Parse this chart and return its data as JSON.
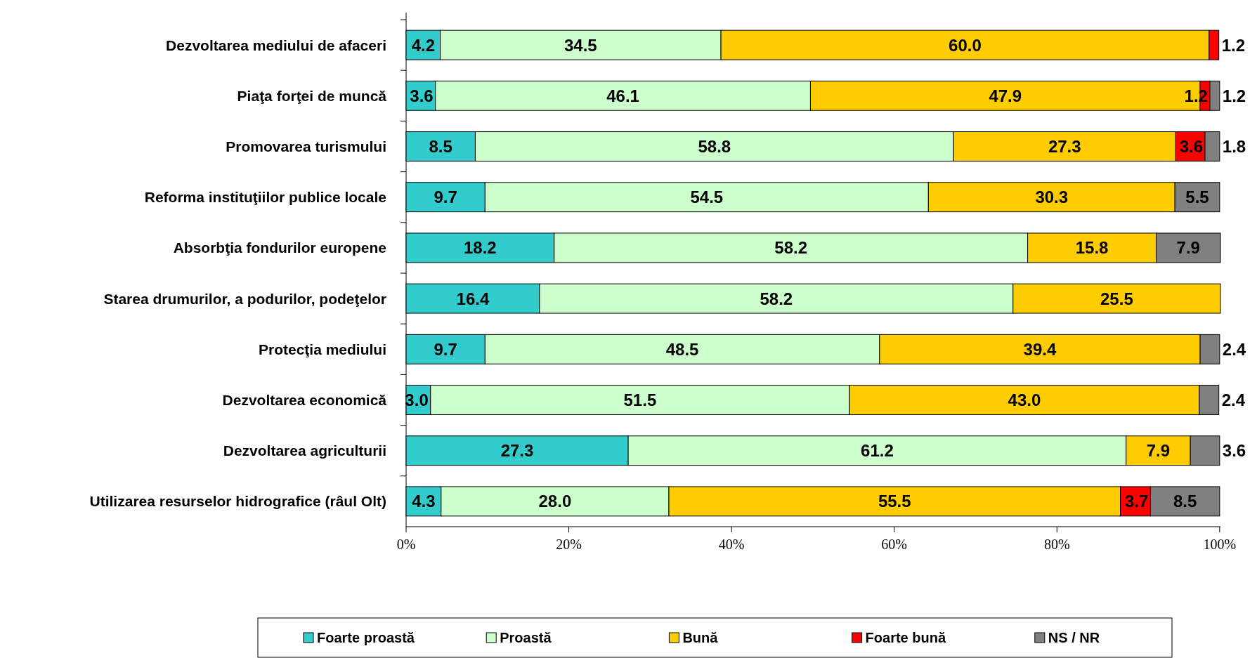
{
  "chart_data": {
    "type": "bar",
    "orientation": "horizontal",
    "stacked": true,
    "categories": [
      "Dezvoltarea mediului de afaceri",
      "Piaţa forţei de muncă",
      "Promovarea turismului",
      "Reforma instituţiilor publice locale",
      "Absorbţia fondurilor europene",
      "Starea drumurilor, a podurilor, podeţelor",
      "Protecţia mediului",
      "Dezvoltarea economică",
      "Dezvoltarea agriculturii",
      "Utilizarea resurselor hidrografice (râul Olt)"
    ],
    "series": [
      {
        "name": "Foarte proastă",
        "color": "#33cccc",
        "values": [
          4.2,
          3.6,
          8.5,
          9.7,
          18.2,
          16.4,
          9.7,
          3.0,
          27.3,
          4.3
        ],
        "value_labels": [
          "4.2",
          "3.6",
          "8.5",
          "9.7",
          "18.2",
          "16.4",
          "9.7",
          "3.0",
          "27.3",
          "4.3"
        ]
      },
      {
        "name": "Proastă",
        "color": "#ccffcc",
        "values": [
          34.5,
          46.1,
          58.8,
          54.5,
          58.2,
          58.2,
          48.5,
          51.5,
          61.2,
          28.0
        ],
        "value_labels": [
          "34.5",
          "46.1",
          "58.8",
          "54.5",
          "58.2",
          "58.2",
          "48.5",
          "51.5",
          "61.2",
          "28.0"
        ]
      },
      {
        "name": "Bună",
        "color": "#ffcc00",
        "values": [
          60.0,
          47.9,
          27.3,
          30.3,
          15.8,
          25.5,
          39.4,
          43.0,
          7.9,
          55.5
        ],
        "value_labels": [
          "60.0",
          "47.9",
          "27.3",
          "30.3",
          "15.8",
          "25.5",
          "39.4",
          "43.0",
          "7.9",
          "55.5"
        ]
      },
      {
        "name": "Foarte bună",
        "color": "#ff0000",
        "values": [
          1.2,
          1.2,
          3.6,
          null,
          null,
          null,
          null,
          null,
          null,
          3.7
        ],
        "value_labels": [
          "1.2",
          "1.2",
          "3.6",
          null,
          null,
          null,
          null,
          null,
          null,
          "3.7"
        ]
      },
      {
        "name": "NS / NR",
        "color": "#808080",
        "values": [
          null,
          1.2,
          1.8,
          5.5,
          7.9,
          null,
          2.4,
          2.4,
          3.6,
          8.5
        ],
        "value_labels": [
          null,
          "1.2",
          "1.8",
          "5.5",
          "7.9",
          null,
          "2.4",
          "2.4",
          "3.6",
          "8.5"
        ]
      }
    ],
    "xlim": [
      0,
      100.1
    ],
    "xticks": [
      {
        "value": 0,
        "label": "0%"
      },
      {
        "value": 20,
        "label": "20%"
      },
      {
        "value": 40,
        "label": "40%"
      },
      {
        "value": 60,
        "label": "60%"
      },
      {
        "value": 80,
        "label": "80%"
      },
      {
        "value": 100,
        "label": "100%"
      }
    ],
    "legend": "bottom"
  }
}
